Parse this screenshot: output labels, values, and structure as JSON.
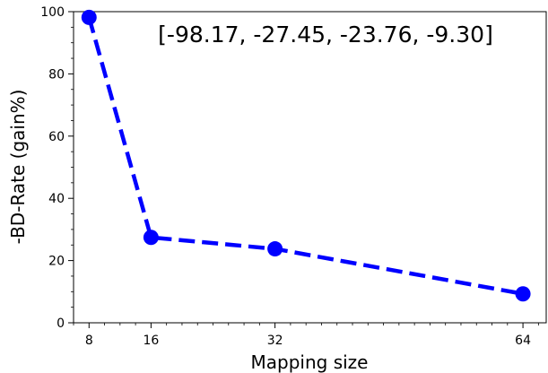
{
  "chart_data": {
    "type": "line",
    "title": "",
    "annotation": "[-98.17, -27.45, -23.76, -9.30]",
    "xlabel": "Mapping size",
    "ylabel": "-BD-Rate (gain%)",
    "x": [
      8,
      16,
      32,
      64
    ],
    "xticks": [
      "8",
      "16",
      "32",
      "64"
    ],
    "xlim": [
      6,
      67
    ],
    "ylim": [
      0,
      100
    ],
    "yticks": [
      "0",
      "20",
      "40",
      "60",
      "80",
      "100"
    ],
    "series": [
      {
        "values": [
          98.17,
          27.45,
          23.76,
          9.3
        ],
        "color": "#0000ff",
        "style": "dashed",
        "marker": "circle"
      }
    ],
    "grid": false,
    "legend": "none"
  }
}
